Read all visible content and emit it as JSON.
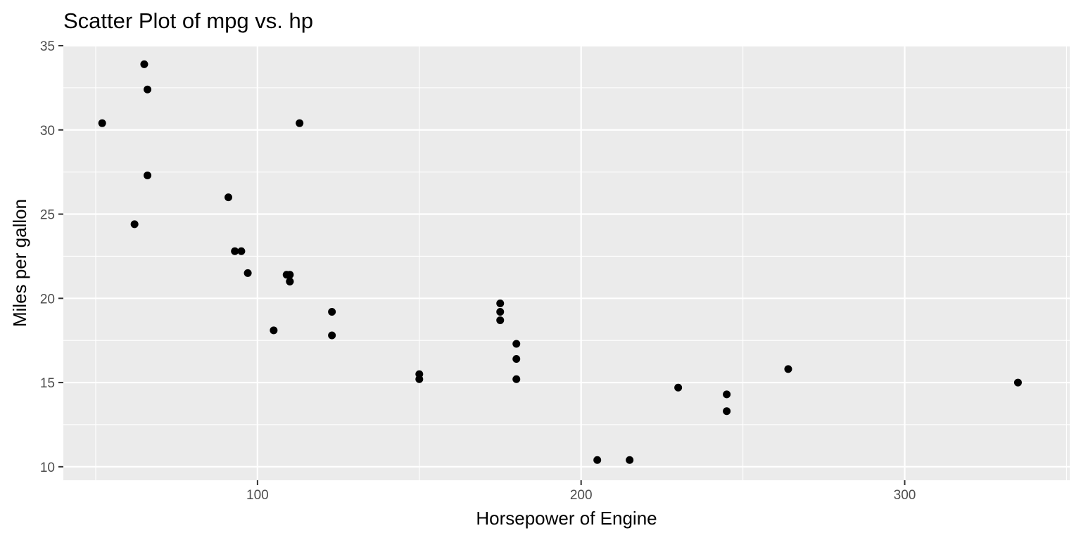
{
  "chart_data": {
    "type": "scatter",
    "title": "Scatter Plot of mpg vs. hp",
    "xlabel": "Horsepower of Engine",
    "ylabel": "Miles per gallon",
    "xlim": [
      40,
      351
    ],
    "ylim": [
      9.2,
      35
    ],
    "x_ticks": [
      100,
      200,
      300
    ],
    "x_minor_ticks": [
      50,
      150,
      250,
      350
    ],
    "y_ticks": [
      10,
      15,
      20,
      25,
      30,
      35
    ],
    "y_minor_ticks": [
      12.5,
      17.5,
      22.5,
      27.5,
      32.5
    ],
    "grid": true,
    "panel_color": "#ebebeb",
    "point_color": "#000000",
    "points": [
      {
        "x": 110,
        "y": 21.0
      },
      {
        "x": 110,
        "y": 21.0
      },
      {
        "x": 93,
        "y": 22.8
      },
      {
        "x": 110,
        "y": 21.4
      },
      {
        "x": 175,
        "y": 18.7
      },
      {
        "x": 105,
        "y": 18.1
      },
      {
        "x": 245,
        "y": 14.3
      },
      {
        "x": 62,
        "y": 24.4
      },
      {
        "x": 95,
        "y": 22.8
      },
      {
        "x": 123,
        "y": 19.2
      },
      {
        "x": 123,
        "y": 17.8
      },
      {
        "x": 180,
        "y": 16.4
      },
      {
        "x": 180,
        "y": 17.3
      },
      {
        "x": 180,
        "y": 15.2
      },
      {
        "x": 205,
        "y": 10.4
      },
      {
        "x": 215,
        "y": 10.4
      },
      {
        "x": 230,
        "y": 14.7
      },
      {
        "x": 66,
        "y": 32.4
      },
      {
        "x": 52,
        "y": 30.4
      },
      {
        "x": 65,
        "y": 33.9
      },
      {
        "x": 97,
        "y": 21.5
      },
      {
        "x": 150,
        "y": 15.5
      },
      {
        "x": 150,
        "y": 15.2
      },
      {
        "x": 245,
        "y": 13.3
      },
      {
        "x": 175,
        "y": 19.2
      },
      {
        "x": 66,
        "y": 27.3
      },
      {
        "x": 91,
        "y": 26.0
      },
      {
        "x": 113,
        "y": 30.4
      },
      {
        "x": 264,
        "y": 15.8
      },
      {
        "x": 175,
        "y": 19.7
      },
      {
        "x": 335,
        "y": 15.0
      },
      {
        "x": 109,
        "y": 21.4
      }
    ]
  }
}
